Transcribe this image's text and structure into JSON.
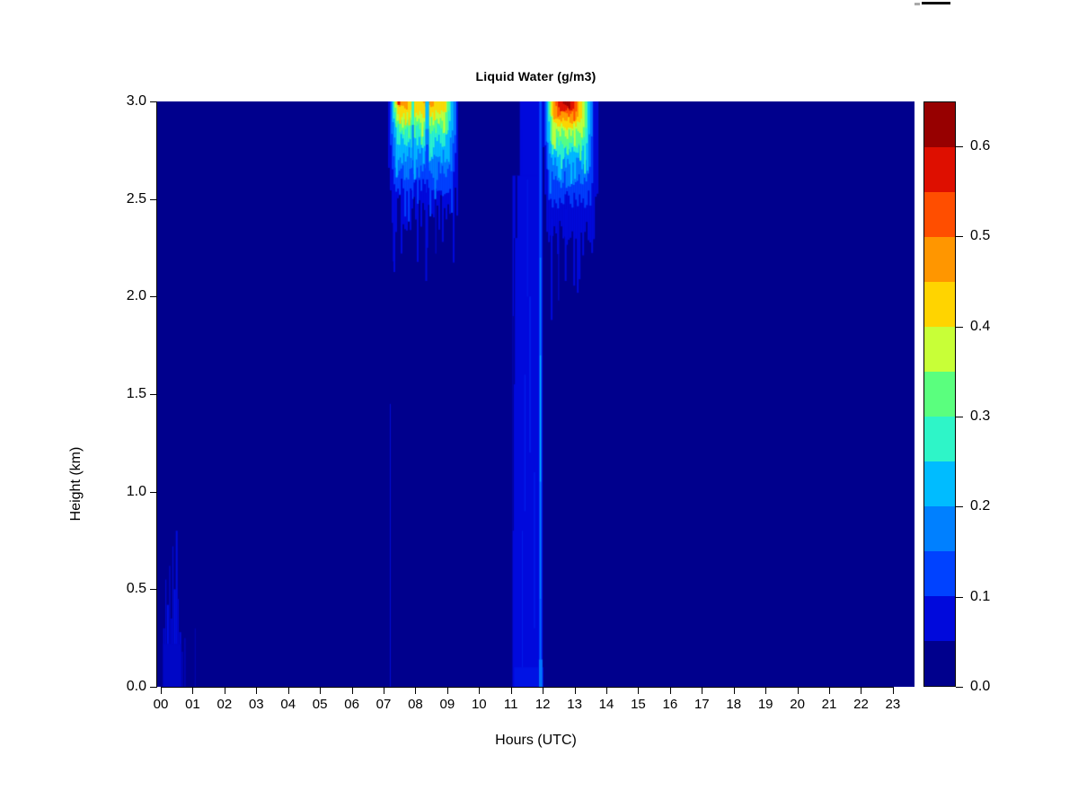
{
  "chart_data": {
    "type": "heatmap",
    "title": "Liquid Water (g/m3)",
    "xlabel": "Hours (UTC)",
    "ylabel": "Height (km)",
    "xlim": [
      0,
      24
    ],
    "ylim": [
      0,
      3
    ],
    "x_tick_labels": [
      "00",
      "01",
      "02",
      "03",
      "04",
      "05",
      "06",
      "07",
      "08",
      "09",
      "10",
      "11",
      "12",
      "13",
      "14",
      "15",
      "16",
      "17",
      "18",
      "19",
      "20",
      "21",
      "22",
      "23"
    ],
    "y_tick_values": [
      0.0,
      0.5,
      1.0,
      1.5,
      2.0,
      2.5,
      3.0
    ],
    "y_tick_labels": [
      "0.0",
      "0.5",
      "1.0",
      "1.5",
      "2.0",
      "2.5",
      "3.0"
    ],
    "colorbar": {
      "vmin": 0.0,
      "vmax": 0.65,
      "n_levels": 13,
      "level_step": 0.05,
      "tick_values": [
        0.0,
        0.1,
        0.2,
        0.3,
        0.4,
        0.5,
        0.6
      ],
      "tick_labels": [
        "0.0",
        "0.1",
        "0.2",
        "0.3",
        "0.4",
        "0.5",
        "0.6"
      ],
      "palette": [
        "#00008D",
        "#0009DC",
        "#0042FF",
        "#0080FF",
        "#00BCFF",
        "#2EF5C8",
        "#5AFF7E",
        "#C8FF37",
        "#FFD400",
        "#FF9600",
        "#FF4E00",
        "#DE0F00",
        "#970000"
      ]
    },
    "background_level": "0.00-0.05",
    "features": [
      {
        "t": "streak",
        "h": 0.1,
        "w": 2,
        "k0": 0,
        "k1": 0.3,
        "c": "#0008CE"
      },
      {
        "t": "streak",
        "h": 0.16,
        "w": 1,
        "k0": 0,
        "k1": 0.55,
        "c": "#000BDC"
      },
      {
        "t": "streak",
        "h": 0.22,
        "w": 2,
        "k0": 0,
        "k1": 0.42,
        "c": "#0010E8"
      },
      {
        "t": "streak",
        "h": 0.28,
        "w": 1,
        "k0": 0,
        "k1": 0.62,
        "c": "#000BDC"
      },
      {
        "t": "streak",
        "h": 0.33,
        "w": 2,
        "k0": 0,
        "k1": 0.35,
        "c": "#0008CE"
      },
      {
        "t": "streak",
        "h": 0.38,
        "w": 1,
        "k0": 0,
        "k1": 0.72,
        "c": "#000BDC"
      },
      {
        "t": "streak",
        "h": 0.44,
        "w": 2,
        "k0": 0,
        "k1": 0.5,
        "c": "#0010E8"
      },
      {
        "t": "streak",
        "h": 0.5,
        "w": 2,
        "k0": 0,
        "k1": 0.8,
        "c": "#000BDC"
      },
      {
        "t": "streak",
        "h": 0.55,
        "w": 1,
        "k0": 0,
        "k1": 0.45,
        "c": "#0008CE"
      },
      {
        "t": "streak",
        "h": 0.61,
        "w": 2,
        "k0": 0,
        "k1": 0.28,
        "c": "#000BDC"
      },
      {
        "t": "streak",
        "h": 0.68,
        "w": 1,
        "k0": 0,
        "k1": 0.18,
        "c": "#0008CE"
      },
      {
        "t": "streak",
        "h": 0.76,
        "w": 1,
        "k0": 0,
        "k1": 0.25,
        "c": "#0008CE"
      },
      {
        "t": "rect",
        "h0": 0.07,
        "h1": 0.64,
        "k0": 0,
        "k1": 0.22,
        "c": "#0007C6"
      },
      {
        "t": "streak",
        "h": 1.08,
        "w": 1,
        "k0": 0,
        "k1": 0.3,
        "c": "#0006B8"
      },
      {
        "t": "streak",
        "h": 7.21,
        "w": 1,
        "k0": 0,
        "k1": 1.45,
        "c": "#000CD8"
      },
      {
        "t": "plume",
        "h0": 7.14,
        "h1": 9.34,
        "base": 2.42,
        "amp": 0.1,
        "ci": 1
      },
      {
        "t": "streak",
        "h": 7.32,
        "w": 2,
        "k0": 2.18,
        "k1": 2.6,
        "ci": 1
      },
      {
        "t": "streak",
        "h": 8.34,
        "w": 2,
        "k0": 2.08,
        "k1": 2.6,
        "ci": 1
      },
      {
        "t": "streak",
        "h": 8.64,
        "w": 1,
        "k0": 2.22,
        "k1": 2.6,
        "ci": 1
      },
      {
        "t": "streak",
        "h": 8.86,
        "w": 2,
        "k0": 2.28,
        "k1": 2.6,
        "ci": 1
      },
      {
        "t": "plume",
        "h0": 7.2,
        "h1": 9.28,
        "base": 2.56,
        "amp": 0.055,
        "ci": 2
      },
      {
        "t": "plume",
        "h0": 7.24,
        "h1": 9.22,
        "base": 2.64,
        "amp": 0.05,
        "ci": 3
      },
      {
        "t": "plume",
        "h0": 7.27,
        "h1": 9.15,
        "base": 2.72,
        "amp": 0.045,
        "ci": 4
      },
      {
        "t": "plume",
        "h0": 7.3,
        "h1": 9.08,
        "base": 2.8,
        "amp": 0.04,
        "ci": 5
      },
      {
        "t": "plume",
        "h0": 7.32,
        "h1": 9.02,
        "base": 2.86,
        "amp": 0.032,
        "ci": 6
      },
      {
        "t": "plume",
        "h0": 7.35,
        "h1": 8.98,
        "base": 2.9,
        "amp": 0.026,
        "ci": 7
      },
      {
        "t": "plume",
        "h0": 7.38,
        "h1": 8.93,
        "base": 2.935,
        "amp": 0.022,
        "ci": 8
      },
      {
        "t": "plume",
        "h0": 7.42,
        "h1": 7.74,
        "base": 2.965,
        "amp": 0.015,
        "ci": 9
      },
      {
        "t": "plume",
        "h0": 8.24,
        "h1": 8.56,
        "base": 2.968,
        "amp": 0.014,
        "ci": 9
      },
      {
        "t": "rect",
        "h0": 7.44,
        "h1": 7.52,
        "k0": 2.982,
        "k1": 3.0,
        "ci": 11
      },
      {
        "t": "rect",
        "h0": 7.88,
        "h1": 7.96,
        "k0": 2.88,
        "k1": 3.0,
        "ci": 5
      },
      {
        "t": "rect",
        "h0": 7.89,
        "h1": 7.95,
        "k0": 2.7,
        "k1": 2.88,
        "ci": 3
      },
      {
        "t": "rect",
        "h0": 7.9,
        "h1": 7.94,
        "k0": 2.5,
        "k1": 2.7,
        "ci": 2
      },
      {
        "t": "rect",
        "h0": 8.31,
        "h1": 8.43,
        "k0": 2.86,
        "k1": 3.0,
        "ci": 4
      },
      {
        "t": "rect",
        "h0": 8.31,
        "h1": 8.43,
        "k0": 2.78,
        "k1": 2.86,
        "ci": 3
      },
      {
        "t": "rect",
        "h0": 8.32,
        "h1": 8.42,
        "k0": 2.6,
        "k1": 2.78,
        "ci": 2
      },
      {
        "t": "streak",
        "h": 8.37,
        "w": 2,
        "k0": 2.25,
        "k1": 2.6,
        "ci": 1
      },
      {
        "t": "rect",
        "h0": 11.28,
        "h1": 11.97,
        "k0": 2.58,
        "k1": 3.0,
        "ci": 1
      },
      {
        "t": "rect",
        "h0": 11.05,
        "h1": 11.97,
        "k0": 0,
        "k1": 2.62,
        "ci": 1
      },
      {
        "t": "streak",
        "h": 11.07,
        "w": 1,
        "k0": 0.8,
        "k1": 1.9,
        "ci": 0
      },
      {
        "t": "streak",
        "h": 11.11,
        "w": 1,
        "k0": 1.55,
        "k1": 2.3,
        "ci": 0
      },
      {
        "t": "streak",
        "h": 11.17,
        "w": 2,
        "k0": 2.3,
        "k1": 2.62,
        "ci": 0
      },
      {
        "t": "streak",
        "h": 11.32,
        "w": 1,
        "k0": 2.62,
        "k1": 2.85,
        "ci": 1
      },
      {
        "t": "streak",
        "h": 11.44,
        "w": 1,
        "k0": 0.9,
        "k1": 1.6,
        "c": "#0022F0"
      },
      {
        "t": "streak",
        "h": 11.6,
        "w": 2,
        "k0": 1.2,
        "k1": 2.0,
        "c": "#001CE8"
      },
      {
        "t": "streak",
        "h": 11.74,
        "w": 1,
        "k0": 0.3,
        "k1": 1.1,
        "c": "#0022F0"
      },
      {
        "t": "streak",
        "h": 11.52,
        "w": 1,
        "k0": 2.0,
        "k1": 2.6,
        "c": "#001CE8"
      },
      {
        "t": "streak",
        "h": 11.36,
        "w": 1,
        "k0": 0.1,
        "k1": 0.8,
        "c": "#001CE8"
      },
      {
        "t": "rect",
        "h0": 11.1,
        "h1": 12.02,
        "k0": 0,
        "k1": 0.1,
        "c": "#0013E4"
      },
      {
        "t": "rect",
        "h0": 11.86,
        "h1": 12.0,
        "k0": 0,
        "k1": 3.0,
        "ci": 1
      },
      {
        "t": "rect",
        "h0": 11.885,
        "h1": 11.975,
        "k0": 0,
        "k1": 3.0,
        "c": "#0034FB"
      },
      {
        "t": "rect",
        "h0": 11.905,
        "h1": 11.95,
        "k0": 2.2,
        "k1": 3.0,
        "c": "#0050FF"
      },
      {
        "t": "rect",
        "h0": 11.905,
        "h1": 11.95,
        "k0": 1.7,
        "k1": 2.2,
        "c": "#0080FF"
      },
      {
        "t": "rect",
        "h0": 11.905,
        "h1": 11.95,
        "k0": 1.05,
        "k1": 1.7,
        "c": "#00B4FF"
      },
      {
        "t": "rect",
        "h0": 11.905,
        "h1": 11.95,
        "k0": 0.45,
        "k1": 1.05,
        "c": "#0080FF"
      },
      {
        "t": "rect",
        "h0": 11.905,
        "h1": 11.95,
        "k0": 0.0,
        "k1": 0.45,
        "c": "#0068FF"
      },
      {
        "t": "rect",
        "h0": 11.88,
        "h1": 11.99,
        "k0": 0,
        "k1": 0.14,
        "c": "#0076FF"
      },
      {
        "t": "plume",
        "h0": 12.0,
        "h1": 13.7,
        "base": 2.3,
        "amp": 0.09,
        "ci": 1
      },
      {
        "t": "streak",
        "h": 12.28,
        "w": 2,
        "k0": 1.88,
        "k1": 2.4,
        "ci": 1
      },
      {
        "t": "streak",
        "h": 12.5,
        "w": 1,
        "k0": 1.98,
        "k1": 2.4,
        "ci": 1
      },
      {
        "t": "streak",
        "h": 12.72,
        "w": 2,
        "k0": 2.08,
        "k1": 2.45,
        "ci": 1
      },
      {
        "t": "plume",
        "h0": 12.06,
        "h1": 13.58,
        "base": 2.5,
        "amp": 0.05,
        "ci": 2
      },
      {
        "t": "plume",
        "h0": 12.1,
        "h1": 13.52,
        "base": 2.6,
        "amp": 0.045,
        "ci": 3
      },
      {
        "t": "plume",
        "h0": 12.14,
        "h1": 13.46,
        "base": 2.68,
        "amp": 0.04,
        "ci": 4
      },
      {
        "t": "plume",
        "h0": 12.17,
        "h1": 13.4,
        "base": 2.74,
        "amp": 0.036,
        "ci": 5
      },
      {
        "t": "plume",
        "h0": 12.2,
        "h1": 13.34,
        "base": 2.79,
        "amp": 0.032,
        "ci": 6
      },
      {
        "t": "plume",
        "h0": 12.24,
        "h1": 13.28,
        "base": 2.835,
        "amp": 0.028,
        "ci": 7
      },
      {
        "t": "plume",
        "h0": 12.28,
        "h1": 13.2,
        "base": 2.875,
        "amp": 0.024,
        "ci": 8
      },
      {
        "t": "plume",
        "h0": 12.33,
        "h1": 13.12,
        "base": 2.905,
        "amp": 0.02,
        "ci": 9
      },
      {
        "t": "plume",
        "h0": 12.4,
        "h1": 13.03,
        "base": 2.935,
        "amp": 0.016,
        "ci": 10
      },
      {
        "t": "plume",
        "h0": 12.48,
        "h1": 12.95,
        "base": 2.958,
        "amp": 0.012,
        "ci": 11
      },
      {
        "t": "plume",
        "h0": 12.58,
        "h1": 12.86,
        "base": 2.982,
        "amp": 0.008,
        "ci": 12
      }
    ]
  }
}
